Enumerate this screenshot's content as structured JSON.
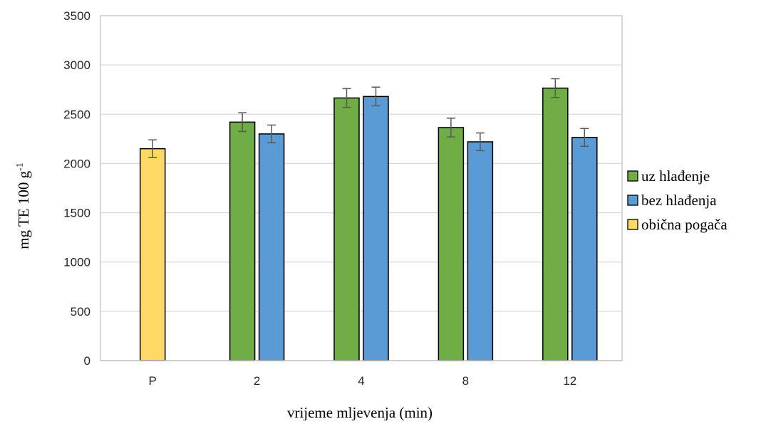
{
  "chart_data": {
    "type": "bar",
    "categories": [
      "P",
      "2",
      "4",
      "8",
      "12"
    ],
    "series": [
      {
        "name": "uz hlađenje",
        "color": "#70ad47",
        "values": [
          null,
          2420,
          2665,
          2365,
          2765
        ],
        "errors": [
          null,
          95,
          95,
          95,
          95
        ]
      },
      {
        "name": "bez hlađenja",
        "color": "#5b9bd5",
        "values": [
          null,
          2300,
          2680,
          2220,
          2265
        ],
        "errors": [
          null,
          90,
          95,
          90,
          90
        ]
      },
      {
        "name": "obična pogača",
        "color": "#ffd966",
        "values": [
          2150,
          null,
          null,
          null,
          null
        ],
        "errors": [
          90,
          null,
          null,
          null,
          null
        ]
      }
    ],
    "xlabel": "vrijeme mljevenja (min)",
    "ylabel_main": "mg TE 100 g",
    "ylabel_sup": "-1",
    "ylim": [
      0,
      3500
    ],
    "yticks": [
      0,
      500,
      1000,
      1500,
      2000,
      2500,
      3000,
      3500
    ],
    "grid": true,
    "legend_position": "right"
  }
}
